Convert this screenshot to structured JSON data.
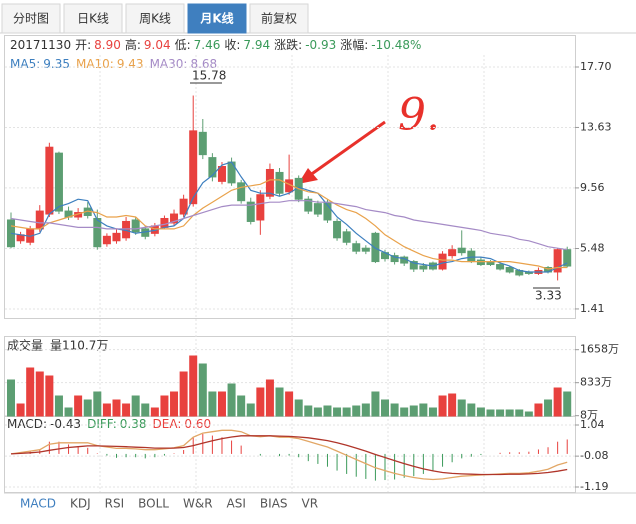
{
  "tabs": [
    "分时图",
    "日K线",
    "周K线",
    "月K线",
    "前复权"
  ],
  "active_tab": 3,
  "info": {
    "date": "20171130",
    "fields": [
      {
        "label": "开:",
        "value": "8.90",
        "color": "#e8413e"
      },
      {
        "label": "高:",
        "value": "9.04",
        "color": "#e8413e"
      },
      {
        "label": "低:",
        "value": "7.46",
        "color": "#3a9a5a"
      },
      {
        "label": "收:",
        "value": "7.94",
        "color": "#3a9a5a"
      },
      {
        "label": "涨跌:",
        "value": "-0.93",
        "color": "#3a9a5a"
      },
      {
        "label": "涨幅:",
        "value": "-10.48%",
        "color": "#3a9a5a"
      }
    ]
  },
  "indicator_tabs": [
    "MACD",
    "KDJ",
    "RSI",
    "BOLL",
    "W&R",
    "ASI",
    "BIAS",
    "VR"
  ],
  "active_indicator": 0,
  "annotation": "9.",
  "chart_data": [
    {
      "type": "candlestick",
      "legend": [
        {
          "label": "MA5:",
          "value": "9.35"
        },
        {
          "label": "MA10:",
          "value": "9.43"
        },
        {
          "label": "MA30:",
          "value": "8.68"
        }
      ],
      "up_color": "#e8413e",
      "down_color": "#5c9e72",
      "open": [
        7.4,
        6.0,
        5.9,
        6.8,
        7.8,
        11.9,
        8.0,
        7.6,
        8.2,
        7.5,
        5.8,
        6.0,
        6.2,
        7.4,
        6.8,
        6.5,
        6.9,
        7.2,
        7.8,
        8.5,
        13.3,
        11.6,
        10.0,
        11.3,
        9.9,
        8.6,
        7.4,
        9.0,
        10.6,
        9.3,
        10.2,
        8.8,
        8.5,
        8.6,
        7.3,
        6.6,
        5.8,
        5.5,
        6.5,
        5.2,
        5.0,
        4.9,
        4.6,
        4.3,
        4.5,
        4.1,
        5.0,
        5.5,
        5.3,
        4.7,
        4.6,
        4.4,
        4.2,
        4.0,
        3.9,
        3.8,
        4.2,
        3.9,
        5.4
      ],
      "high": [
        7.9,
        6.6,
        7.0,
        8.4,
        12.6,
        12.0,
        8.3,
        8.2,
        8.6,
        8.1,
        6.5,
        6.8,
        7.6,
        7.6,
        7.0,
        7.2,
        7.7,
        8.1,
        9.1,
        15.78,
        14.2,
        11.9,
        11.3,
        11.6,
        10.1,
        8.9,
        9.4,
        11.2,
        10.9,
        11.8,
        10.4,
        9.0,
        8.7,
        8.8,
        7.5,
        6.8,
        6.0,
        5.7,
        6.6,
        5.4,
        5.2,
        5.0,
        4.7,
        4.5,
        4.6,
        5.3,
        5.7,
        6.7,
        5.5,
        4.9,
        4.7,
        4.6,
        4.3,
        4.1,
        4.0,
        4.2,
        4.3,
        5.5,
        5.6
      ],
      "low": [
        5.5,
        5.8,
        5.7,
        6.6,
        7.6,
        7.8,
        7.4,
        7.4,
        7.5,
        5.4,
        5.6,
        5.8,
        6.0,
        6.4,
        6.1,
        6.3,
        6.8,
        7.0,
        7.6,
        8.3,
        11.5,
        10.0,
        9.8,
        9.7,
        8.5,
        7.1,
        6.4,
        8.8,
        9.0,
        9.1,
        8.6,
        7.8,
        7.6,
        7.2,
        6.0,
        5.7,
        5.1,
        5.1,
        4.5,
        4.6,
        4.4,
        4.3,
        3.9,
        3.9,
        4.0,
        4.0,
        4.8,
        5.0,
        4.5,
        4.3,
        4.3,
        4.0,
        3.8,
        3.6,
        3.7,
        3.7,
        3.8,
        3.33,
        4.2
      ],
      "close": [
        5.6,
        6.4,
        6.8,
        8.0,
        12.3,
        8.0,
        7.6,
        7.9,
        7.7,
        5.6,
        6.3,
        6.5,
        7.3,
        6.6,
        6.3,
        7.0,
        7.5,
        7.8,
        8.8,
        13.4,
        11.8,
        10.3,
        11.0,
        9.9,
        8.7,
        7.3,
        9.1,
        10.8,
        9.2,
        10.1,
        8.8,
        8.0,
        7.8,
        7.4,
        6.2,
        5.9,
        5.3,
        5.3,
        4.6,
        4.8,
        4.6,
        4.5,
        4.1,
        4.1,
        4.1,
        5.1,
        5.4,
        5.2,
        4.6,
        4.4,
        4.4,
        4.1,
        3.9,
        3.7,
        3.8,
        4.0,
        3.9,
        5.4,
        4.3
      ],
      "series": [
        {
          "color": "#3d7fbf",
          "values": [
            6.5,
            6.4,
            6.3,
            6.5,
            7.8,
            8.3,
            8.5,
            8.8,
            8.7,
            7.4,
            7.0,
            6.8,
            6.7,
            6.5,
            6.6,
            6.7,
            6.9,
            7.0,
            7.5,
            8.9,
            9.9,
            10.4,
            11.1,
            11.3,
            10.3,
            9.4,
            9.2,
            9.2,
            9.0,
            9.2,
            9.6,
            9.4,
            9.2,
            8.4,
            7.6,
            7.1,
            6.5,
            6.0,
            5.5,
            5.2,
            4.9,
            4.8,
            4.5,
            4.4,
            4.3,
            4.5,
            4.6,
            4.8,
            4.9,
            4.9,
            4.8,
            4.5,
            4.3,
            4.0,
            3.9,
            3.9,
            3.9,
            4.2,
            4.5
          ]
        },
        {
          "color": "#e9a24b",
          "values": [
            7.0,
            6.9,
            6.8,
            6.8,
            7.2,
            7.4,
            7.6,
            7.8,
            8.0,
            7.9,
            7.6,
            7.6,
            7.7,
            7.6,
            7.0,
            6.8,
            6.8,
            6.8,
            7.0,
            7.7,
            8.2,
            8.6,
            9.0,
            9.4,
            9.6,
            9.7,
            9.8,
            10.1,
            10.1,
            9.8,
            9.5,
            9.3,
            9.2,
            8.8,
            8.4,
            8.1,
            7.9,
            7.5,
            7.0,
            6.4,
            6.0,
            5.6,
            5.3,
            5.0,
            4.8,
            4.7,
            4.7,
            4.6,
            4.6,
            4.6,
            4.6,
            4.6,
            4.6,
            4.5,
            4.4,
            4.3,
            4.1,
            4.2,
            4.2
          ]
        },
        {
          "color": "#a58bc6",
          "values": [
            7.5,
            7.4,
            7.3,
            7.2,
            7.2,
            7.1,
            7.0,
            6.9,
            6.9,
            6.9,
            6.8,
            6.8,
            6.8,
            6.8,
            6.9,
            7.0,
            7.1,
            7.3,
            7.5,
            7.7,
            7.9,
            8.1,
            8.3,
            8.4,
            8.4,
            8.4,
            8.5,
            8.6,
            8.6,
            8.7,
            8.7,
            8.7,
            8.6,
            8.6,
            8.5,
            8.4,
            8.3,
            8.1,
            8.0,
            7.9,
            7.7,
            7.6,
            7.4,
            7.3,
            7.2,
            7.1,
            7.0,
            6.9,
            6.8,
            6.7,
            6.5,
            6.4,
            6.3,
            6.1,
            6.0,
            5.8,
            5.6,
            5.5,
            5.4
          ]
        }
      ],
      "ylim": [
        0.8,
        18.71
      ],
      "yticks": [
        {
          "value": 17.7,
          "label": "17.70"
        },
        {
          "value": 13.63,
          "label": "13.63"
        },
        {
          "value": 9.56,
          "label": "9.56"
        },
        {
          "value": 5.48,
          "label": "5.48"
        },
        {
          "value": 1.41,
          "label": "1.41"
        }
      ],
      "max_label": "15.78",
      "min_label": "3.33",
      "grid": true
    },
    {
      "type": "bar",
      "title": "成交量",
      "subtitle": "量110.7万",
      "values": [
        900,
        300,
        1200,
        1100,
        1000,
        500,
        200,
        500,
        400,
        600,
        300,
        400,
        300,
        500,
        300,
        200,
        500,
        600,
        1100,
        1500,
        1300,
        600,
        600,
        800,
        500,
        300,
        700,
        900,
        700,
        600,
        400,
        250,
        200,
        250,
        200,
        200,
        250,
        300,
        600,
        400,
        300,
        200,
        250,
        300,
        200,
        500,
        550,
        400,
        300,
        200,
        150,
        150,
        150,
        150,
        100,
        300,
        400,
        700,
        600
      ],
      "ylim": [
        0,
        1900
      ],
      "yticks": [
        {
          "value": 1658,
          "label": "1658万"
        },
        {
          "value": 833,
          "label": "833万"
        },
        {
          "value": 8,
          "label": "8万"
        }
      ],
      "grid": true
    },
    {
      "type": "macd",
      "legend": [
        {
          "label": "MACD:",
          "value": "-0.43",
          "color": "#333333"
        },
        {
          "label": "DIFF:",
          "value": "0.38",
          "color": "#3a9a5a"
        },
        {
          "label": "DEA:",
          "value": "0.60",
          "color": "#e8413e"
        }
      ],
      "series": [
        {
          "name": "DIFF",
          "color": "#e2a766",
          "values": [
            0.0,
            0.05,
            0.1,
            0.15,
            0.35,
            0.4,
            0.4,
            0.4,
            0.4,
            0.3,
            0.25,
            0.2,
            0.2,
            0.18,
            0.15,
            0.15,
            0.18,
            0.22,
            0.3,
            0.6,
            0.75,
            0.8,
            0.85,
            0.85,
            0.8,
            0.65,
            0.62,
            0.65,
            0.6,
            0.6,
            0.55,
            0.45,
            0.35,
            0.25,
            0.1,
            -0.05,
            -0.2,
            -0.35,
            -0.5,
            -0.6,
            -0.7,
            -0.78,
            -0.85,
            -0.9,
            -0.92,
            -0.9,
            -0.85,
            -0.8,
            -0.78,
            -0.76,
            -0.74,
            -0.72,
            -0.7,
            -0.7,
            -0.68,
            -0.62,
            -0.55,
            -0.4,
            -0.3
          ]
        },
        {
          "name": "DEA",
          "color": "#b0352a",
          "values": [
            0.0,
            0.02,
            0.04,
            0.07,
            0.13,
            0.18,
            0.23,
            0.26,
            0.29,
            0.29,
            0.28,
            0.27,
            0.26,
            0.24,
            0.23,
            0.21,
            0.21,
            0.21,
            0.23,
            0.3,
            0.39,
            0.47,
            0.55,
            0.61,
            0.65,
            0.65,
            0.65,
            0.65,
            0.64,
            0.63,
            0.61,
            0.58,
            0.53,
            0.48,
            0.4,
            0.31,
            0.21,
            0.1,
            -0.02,
            -0.13,
            -0.24,
            -0.35,
            -0.45,
            -0.54,
            -0.61,
            -0.67,
            -0.7,
            -0.72,
            -0.73,
            -0.74,
            -0.74,
            -0.74,
            -0.73,
            -0.73,
            -0.72,
            -0.7,
            -0.67,
            -0.62,
            -0.56
          ]
        }
      ],
      "values": [
        0,
        0.06,
        0.12,
        0.16,
        0.44,
        0.44,
        0.34,
        0.28,
        0.22,
        0.02,
        -0.06,
        -0.14,
        -0.12,
        -0.12,
        -0.16,
        -0.12,
        -0.06,
        0.02,
        0.14,
        0.6,
        0.72,
        0.66,
        0.6,
        0.48,
        0.3,
        0,
        -0.06,
        0,
        -0.08,
        -0.06,
        -0.12,
        -0.26,
        -0.36,
        -0.46,
        -0.6,
        -0.72,
        -0.82,
        -0.9,
        -0.96,
        -0.94,
        -0.92,
        -0.86,
        -0.8,
        -0.72,
        -0.62,
        -0.46,
        -0.3,
        -0.16,
        -0.1,
        -0.04,
        0,
        0.04,
        0.06,
        0.06,
        0.08,
        0.16,
        0.24,
        0.44,
        0.52
      ],
      "up_color": "#e8413e",
      "down_color": "#3a9a5a",
      "ylim": [
        -1.37,
        1.22
      ],
      "yticks": [
        1.04,
        -0.08,
        -1.19
      ],
      "grid": true
    }
  ]
}
